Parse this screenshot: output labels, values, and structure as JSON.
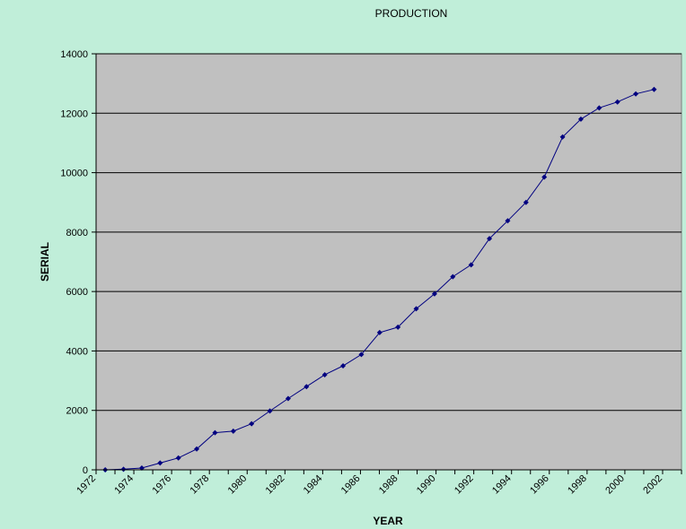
{
  "chart_data": {
    "type": "line",
    "title": "PRODUCTION",
    "xlabel": "YEAR",
    "ylabel": "SERIAL",
    "x": [
      1972,
      1973,
      1974,
      1975,
      1976,
      1977,
      1978,
      1979,
      1980,
      1981,
      1982,
      1983,
      1984,
      1985,
      1986,
      1987,
      1988,
      1989,
      1990,
      1991,
      1992,
      1993,
      1994,
      1995,
      1996,
      1997,
      1998,
      1999,
      2000,
      2001,
      2002,
      2003
    ],
    "series": [
      {
        "values": [
          0,
          20,
          60,
          230,
          400,
          700,
          1250,
          1300,
          1550,
          1980,
          2400,
          2800,
          3200,
          3500,
          3880,
          4620,
          4800,
          5420,
          5920,
          6500,
          6900,
          7780,
          8380,
          9000,
          9850,
          11200,
          11800,
          12180,
          12380,
          12650,
          12800,
          null
        ]
      }
    ],
    "x_tick_labels": [
      "1972",
      "1974",
      "1976",
      "1978",
      "1980",
      "1982",
      "1984",
      "1986",
      "1988",
      "1990",
      "1992",
      "1994",
      "1996",
      "1998",
      "2000",
      "2002"
    ],
    "y_ticks": [
      0,
      2000,
      4000,
      6000,
      8000,
      10000,
      12000,
      14000
    ],
    "y_tick_labels": [
      "0",
      "2000",
      "4000",
      "6000",
      "8000",
      "10000",
      "12000",
      "14000"
    ],
    "ylim": [
      0,
      14000
    ],
    "grid": true,
    "colors": {
      "page_background": "#c0eed9",
      "plot_background": "#c0c0c0",
      "series": "#000080",
      "gridline": "#000000"
    }
  }
}
